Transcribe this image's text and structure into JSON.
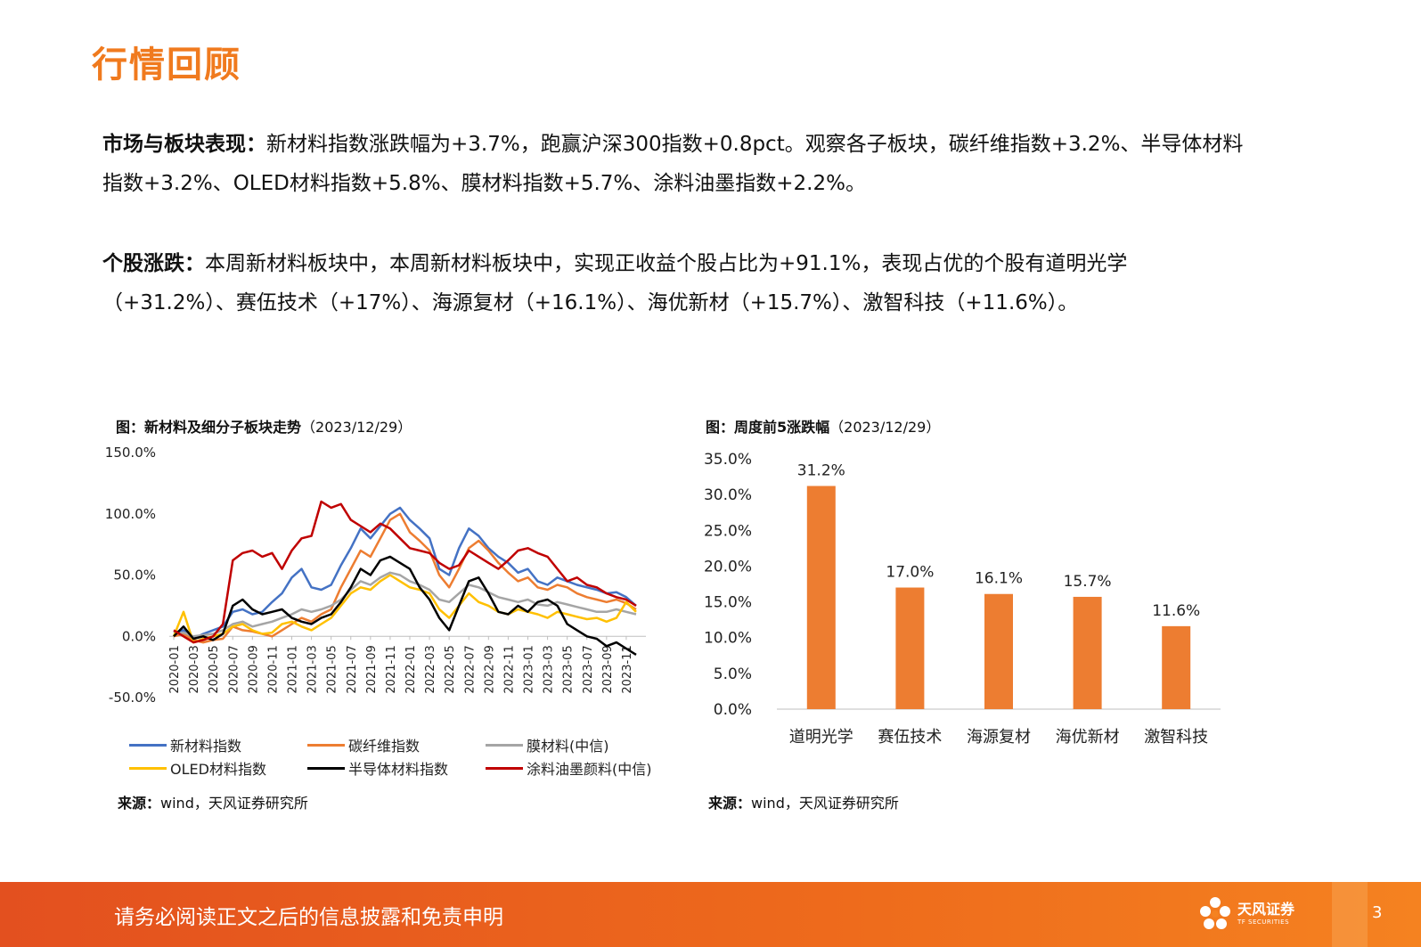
{
  "page": {
    "title": "行情回顾",
    "paragraph1": {
      "lead": "市场与板块表现：",
      "text": "新材料指数涨跌幅为+3.7%，跑赢沪深300指数+0.8pct。观察各子板块，碳纤维指数+3.2%、半导体材料指数+3.2%、OLED材料指数+5.8%、膜材料指数+5.7%、涂料油墨指数+2.2%。"
    },
    "paragraph2": {
      "lead": "个股涨跌：",
      "text": "本周新材料板块中，本周新材料板块中，实现正收益个股占比为+91.1%，表现占优的个股有道明光学（+31.2%）、赛伍技术（+17%）、海源复材（+16.1%）、海优新材（+15.7%）、激智科技（+11.6%）。"
    }
  },
  "charts": {
    "left": {
      "title": "图：新材料及细分子板块走势",
      "date": "（2023/12/29）",
      "source_label": "来源：",
      "source_text": "wind，天风证券研究所"
    },
    "right": {
      "title": "图：周度前5涨跌幅",
      "date": "（2023/12/29）",
      "source_label": "来源：",
      "source_text": "wind，天风证券研究所"
    }
  },
  "chart_data": [
    {
      "type": "line",
      "title": "",
      "ylim": [
        -50,
        150
      ],
      "y_ticks": [
        "150.0%",
        "100.0%",
        "50.0%",
        "0.0%",
        "-50.0%"
      ],
      "y_tick_values": [
        150,
        100,
        50,
        0,
        -50
      ],
      "x_range": [
        0,
        48
      ],
      "x_tick_labels": [
        "2020-01",
        "2020-03",
        "2020-05",
        "2020-07",
        "2020-09",
        "2020-11",
        "2021-01",
        "2021-03",
        "2021-05",
        "2021-07",
        "2021-09",
        "2021-11",
        "2022-01",
        "2022-03",
        "2022-05",
        "2022-07",
        "2022-09",
        "2022-11",
        "2023-01",
        "2023-03",
        "2023-05",
        "2023-07",
        "2023-09",
        "2023-11"
      ],
      "x_tick_positions": [
        0,
        2,
        4,
        6,
        8,
        10,
        12,
        14,
        16,
        18,
        20,
        22,
        24,
        26,
        28,
        30,
        32,
        34,
        36,
        38,
        40,
        42,
        44,
        46
      ],
      "grid": false,
      "legend_position": "bottom",
      "series": [
        {
          "name": "新材料指数",
          "color": "#4472C4",
          "x": [
            0,
            1,
            2,
            3,
            4,
            5,
            6,
            7,
            8,
            9,
            10,
            11,
            12,
            13,
            14,
            15,
            16,
            17,
            18,
            19,
            20,
            21,
            22,
            23,
            24,
            25,
            26,
            27,
            28,
            29,
            30,
            31,
            32,
            33,
            34,
            35,
            36,
            37,
            38,
            39,
            40,
            41,
            42,
            43,
            44,
            45,
            46,
            47
          ],
          "values": [
            3,
            5,
            -2,
            2,
            5,
            8,
            20,
            22,
            18,
            20,
            28,
            35,
            48,
            55,
            40,
            38,
            42,
            58,
            72,
            88,
            80,
            90,
            100,
            105,
            95,
            88,
            80,
            55,
            50,
            72,
            88,
            82,
            72,
            65,
            60,
            52,
            55,
            45,
            42,
            48,
            45,
            42,
            40,
            38,
            35,
            36,
            32,
            25
          ]
        },
        {
          "name": "碳纤维指数",
          "color": "#ED7D31",
          "x": [
            0,
            1,
            2,
            3,
            4,
            5,
            6,
            7,
            8,
            9,
            10,
            11,
            12,
            13,
            14,
            15,
            16,
            17,
            18,
            19,
            20,
            21,
            22,
            23,
            24,
            25,
            26,
            27,
            28,
            29,
            30,
            31,
            32,
            33,
            34,
            35,
            36,
            37,
            38,
            39,
            40,
            41,
            42,
            43,
            44,
            45,
            46,
            47
          ],
          "values": [
            0,
            2,
            -3,
            -5,
            -3,
            -2,
            8,
            5,
            4,
            2,
            0,
            5,
            10,
            15,
            12,
            18,
            22,
            40,
            55,
            70,
            65,
            80,
            95,
            100,
            85,
            78,
            70,
            50,
            40,
            55,
            72,
            78,
            70,
            60,
            52,
            45,
            48,
            40,
            38,
            42,
            40,
            35,
            32,
            30,
            28,
            30,
            27,
            22
          ]
        },
        {
          "name": "膜材料(中信)",
          "color": "#A5A5A5",
          "x": [
            0,
            1,
            2,
            3,
            4,
            5,
            6,
            7,
            8,
            9,
            10,
            11,
            12,
            13,
            14,
            15,
            16,
            17,
            18,
            19,
            20,
            21,
            22,
            23,
            24,
            25,
            26,
            27,
            28,
            29,
            30,
            31,
            32,
            33,
            34,
            35,
            36,
            37,
            38,
            39,
            40,
            41,
            42,
            43,
            44,
            45,
            46,
            47
          ],
          "values": [
            2,
            3,
            0,
            1,
            2,
            5,
            10,
            12,
            8,
            10,
            12,
            15,
            18,
            22,
            20,
            22,
            25,
            30,
            38,
            45,
            42,
            48,
            52,
            50,
            45,
            42,
            38,
            30,
            28,
            35,
            42,
            40,
            36,
            32,
            30,
            28,
            30,
            26,
            25,
            28,
            26,
            24,
            22,
            20,
            20,
            22,
            20,
            18
          ]
        },
        {
          "name": "OLED材料指数",
          "color": "#FFC000",
          "x": [
            0,
            1,
            2,
            3,
            4,
            5,
            6,
            7,
            8,
            9,
            10,
            11,
            12,
            13,
            14,
            15,
            16,
            17,
            18,
            19,
            20,
            21,
            22,
            23,
            24,
            25,
            26,
            27,
            28,
            29,
            30,
            31,
            32,
            33,
            34,
            35,
            36,
            37,
            38,
            39,
            40,
            41,
            42,
            43,
            44,
            45,
            46,
            47
          ],
          "values": [
            0,
            20,
            -5,
            -2,
            0,
            2,
            8,
            10,
            5,
            2,
            3,
            10,
            12,
            8,
            5,
            10,
            15,
            25,
            35,
            40,
            38,
            45,
            50,
            45,
            40,
            38,
            35,
            22,
            15,
            25,
            35,
            28,
            25,
            20,
            18,
            22,
            20,
            18,
            15,
            20,
            18,
            16,
            14,
            15,
            12,
            15,
            28,
            20
          ]
        },
        {
          "name": "半导体材料指数",
          "color": "#000000",
          "x": [
            0,
            1,
            2,
            3,
            4,
            5,
            6,
            7,
            8,
            9,
            10,
            11,
            12,
            13,
            14,
            15,
            16,
            17,
            18,
            19,
            20,
            21,
            22,
            23,
            24,
            25,
            26,
            27,
            28,
            29,
            30,
            31,
            32,
            33,
            34,
            35,
            36,
            37,
            38,
            39,
            40,
            41,
            42,
            43,
            44,
            45,
            46,
            47
          ],
          "values": [
            0,
            8,
            -2,
            0,
            -3,
            2,
            25,
            30,
            22,
            18,
            20,
            22,
            15,
            12,
            10,
            15,
            18,
            28,
            40,
            55,
            50,
            62,
            65,
            60,
            55,
            40,
            30,
            15,
            5,
            25,
            45,
            48,
            35,
            20,
            18,
            25,
            20,
            28,
            30,
            25,
            10,
            5,
            0,
            -2,
            -8,
            -5,
            -10,
            -15
          ]
        },
        {
          "name": "涂料油墨颜料(中信)",
          "color": "#C00000",
          "x": [
            0,
            1,
            2,
            3,
            4,
            5,
            6,
            7,
            8,
            9,
            10,
            11,
            12,
            13,
            14,
            15,
            16,
            17,
            18,
            19,
            20,
            21,
            22,
            23,
            24,
            25,
            26,
            27,
            28,
            29,
            30,
            31,
            32,
            33,
            34,
            35,
            36,
            37,
            38,
            39,
            40,
            41,
            42,
            43,
            44,
            45,
            46,
            47
          ],
          "values": [
            5,
            0,
            -5,
            -3,
            0,
            10,
            62,
            68,
            70,
            65,
            68,
            55,
            70,
            80,
            82,
            110,
            105,
            108,
            95,
            90,
            85,
            92,
            88,
            80,
            72,
            70,
            68,
            60,
            55,
            58,
            70,
            65,
            60,
            55,
            62,
            70,
            72,
            68,
            65,
            55,
            45,
            48,
            42,
            40,
            35,
            32,
            30,
            25
          ]
        }
      ]
    },
    {
      "type": "bar",
      "title": "",
      "categories": [
        "道明光学",
        "赛伍技术",
        "海源复材",
        "海优新材",
        "激智科技"
      ],
      "values": [
        31.2,
        17.0,
        16.1,
        15.7,
        11.6
      ],
      "value_labels": [
        "31.2%",
        "17.0%",
        "16.1%",
        "15.7%",
        "11.6%"
      ],
      "ylim": [
        0,
        35
      ],
      "y_ticks": [
        "35.0%",
        "30.0%",
        "25.0%",
        "20.0%",
        "15.0%",
        "10.0%",
        "5.0%",
        "0.0%"
      ],
      "y_tick_values": [
        35,
        30,
        25,
        20,
        15,
        10,
        5,
        0
      ],
      "grid": false,
      "color": "#ED7D31"
    }
  ],
  "footer": {
    "disclaimer": "请务必阅读正文之后的信息披露和免责申明",
    "logo_cn": "天风证券",
    "logo_en": "TF SECURITIES",
    "page_number": "3"
  }
}
